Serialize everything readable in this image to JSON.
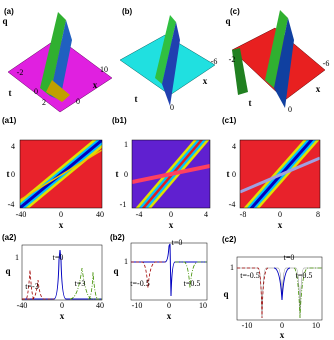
{
  "panels": [
    {
      "label": "(a)",
      "texts": [
        "q",
        "-2",
        "t",
        "0",
        "2",
        "0",
        "x",
        "10"
      ]
    },
    {
      "label": "(b)",
      "texts": [
        "t",
        "0",
        "x",
        "-6"
      ]
    },
    {
      "label": "(c)",
      "texts": [
        "q",
        "-2",
        "t",
        "0",
        "x",
        "-6"
      ]
    },
    {
      "label": "(a1)",
      "texts": [
        "t",
        "4",
        "0",
        "-4",
        "-40",
        "0",
        "40",
        "x"
      ]
    },
    {
      "label": "(b1)",
      "texts": [
        "t",
        "1",
        "0",
        "-1",
        "-4",
        "0",
        "4",
        "x"
      ]
    },
    {
      "label": "(c1)",
      "texts": [
        "t",
        "4",
        "0",
        "-4",
        "-8",
        "0",
        "8",
        "x"
      ]
    },
    {
      "label": "(a2)",
      "texts": [
        "q",
        "1",
        "-40",
        "0",
        "40",
        "x",
        "t=0",
        "t=-3",
        "t=3"
      ]
    },
    {
      "label": "(b2)",
      "texts": [
        "q",
        "1",
        "-10",
        "0",
        "10",
        "x",
        "t=0",
        "t=-0.5",
        "t=0.5"
      ]
    },
    {
      "label": "(c2)",
      "texts": [
        "q",
        "1",
        "-10",
        "0",
        "10",
        "x",
        "t=-0.5",
        "t=0",
        "t=0.5"
      ]
    }
  ]
}
